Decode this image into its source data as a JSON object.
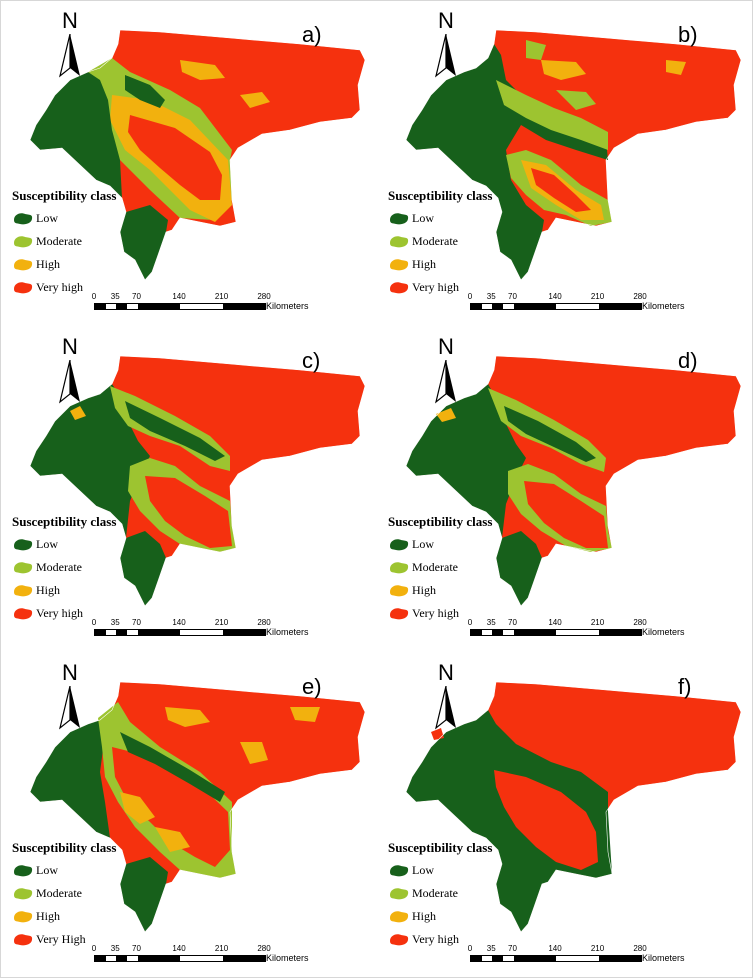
{
  "colors": {
    "low": "#17601b",
    "moderate": "#9dc430",
    "high": "#f2b10e",
    "very_high": "#f5310e"
  },
  "north_label": "N",
  "scale": {
    "ticks": [
      "0",
      "35",
      "70",
      "140",
      "210",
      "280"
    ],
    "unit": "Kilometers"
  },
  "panels": [
    {
      "label": "a)",
      "legend_title": "Susceptibility class",
      "classes": [
        "Low",
        "Moderate",
        "High",
        "Very high"
      ],
      "variant": "a"
    },
    {
      "label": "b)",
      "legend_title": "Susceptibility class",
      "classes": [
        "Low",
        "Moderate",
        "High",
        "Very high"
      ],
      "variant": "b"
    },
    {
      "label": "c)",
      "legend_title": "Susceptibility class",
      "classes": [
        "Low",
        "Moderate",
        "High",
        "Very high"
      ],
      "variant": "c"
    },
    {
      "label": "d)",
      "legend_title": "Susceptibility class",
      "classes": [
        "Low",
        "Moderate",
        "High",
        "Very high"
      ],
      "variant": "d"
    },
    {
      "label": "e)",
      "legend_title": "Susceptibility class",
      "classes": [
        "Low",
        "Moderate",
        "High",
        "Very High"
      ],
      "variant": "e"
    },
    {
      "label": "f)",
      "legend_title": "Susceptibility class",
      "classes": [
        "Low",
        "Moderate",
        "High",
        "Very high"
      ],
      "variant": "f"
    }
  ]
}
